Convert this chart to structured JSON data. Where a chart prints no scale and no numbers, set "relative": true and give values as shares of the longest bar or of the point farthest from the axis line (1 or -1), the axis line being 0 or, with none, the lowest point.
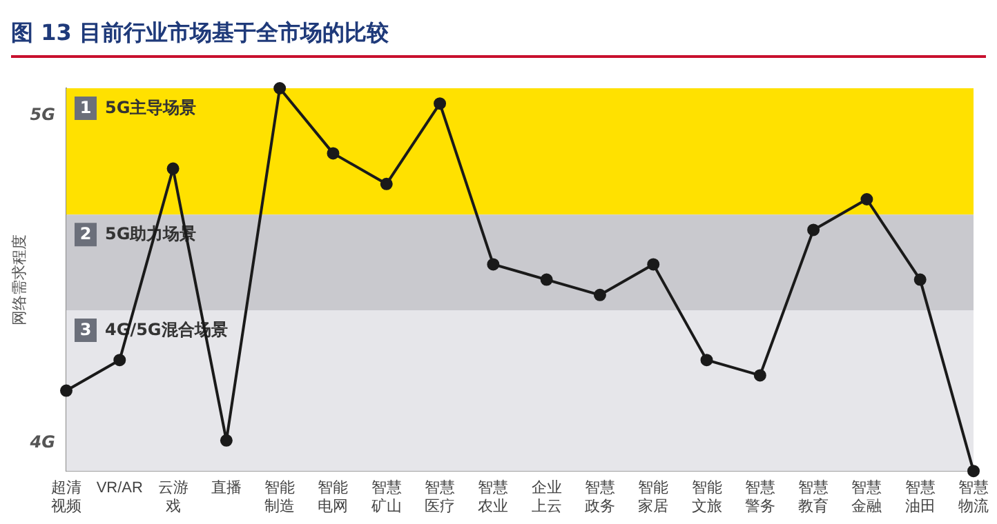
{
  "chart_data": {
    "type": "line",
    "title": "图 13 目前行业市场基于全市场的比较",
    "ylabel": "网络需求程度",
    "categories": [
      "超清视频",
      "VR/AR",
      "云游戏",
      "直播",
      "智能制造",
      "智能电网",
      "智慧矿山",
      "智慧医疗",
      "智慧农业",
      "企业上云",
      "智慧政务",
      "智能家居",
      "智能文旅",
      "智慧警务",
      "智慧教育",
      "智慧金融",
      "智慧油田",
      "智慧物流"
    ],
    "series": [
      {
        "color": "#1a1a1a",
        "values": [
          0.21,
          0.29,
          0.79,
          0.08,
          1,
          0.83,
          0.75,
          0.96,
          0.54,
          0.5,
          0.46,
          0.54,
          0.29,
          0.25,
          0.63,
          0.71,
          0.5,
          0
        ]
      }
    ],
    "relative": true,
    "marker": "circle",
    "line_style": "solid",
    "grid": false,
    "legend": false,
    "bands": [
      {
        "axis": "y",
        "from": 0.67,
        "to": 1,
        "label": "1 5G主导场景",
        "color": "#ffe100"
      },
      {
        "axis": "y",
        "from": 0.42,
        "to": 0.67,
        "label": "2 5G助力场景",
        "color": "#c9c9ce"
      },
      {
        "axis": "y",
        "from": 0,
        "to": 0.42,
        "label": "3 4G/5G混合场景",
        "color": "#e6e6ea"
      }
    ],
    "annotations": [
      "5G",
      "4G"
    ]
  }
}
